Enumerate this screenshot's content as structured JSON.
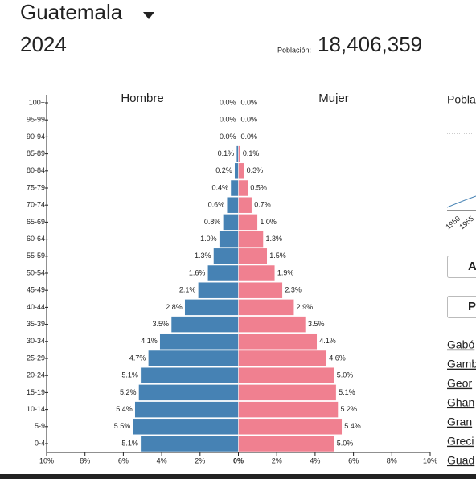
{
  "header": {
    "country": "Guatemala",
    "year": "2024",
    "population_label": "Población:",
    "population": "18,406,359"
  },
  "sidebar": {
    "heading": "Pobla",
    "axis_labels": [
      "1950",
      "1955"
    ],
    "buttons": [
      "A",
      "P"
    ],
    "links": [
      "Gabó",
      "Gamb",
      "Geor",
      "Ghan",
      "Gran",
      "Greci",
      "Guad"
    ]
  },
  "chart_data": {
    "type": "pyramid",
    "categories": [
      "0-4",
      "5-9",
      "10-14",
      "15-19",
      "20-24",
      "25-29",
      "30-34",
      "35-39",
      "40-44",
      "45-49",
      "50-54",
      "55-59",
      "60-64",
      "65-69",
      "70-74",
      "75-79",
      "80-84",
      "85-89",
      "90-94",
      "95-99",
      "100+"
    ],
    "series": [
      {
        "name": "Hombre",
        "color": "#4682b4",
        "side": "left",
        "values": [
          5.1,
          5.5,
          5.4,
          5.2,
          5.1,
          4.7,
          4.1,
          3.5,
          2.8,
          2.1,
          1.6,
          1.3,
          1.0,
          0.8,
          0.6,
          0.4,
          0.2,
          0.1,
          0.0,
          0.0,
          0.0
        ],
        "value_labels": [
          "5.1%",
          "5.5%",
          "5.4%",
          "5.2%",
          "5.1%",
          "4.7%",
          "4.1%",
          "3.5%",
          "2.8%",
          "2.1%",
          "1.6%",
          "1.3%",
          "1.0%",
          "0.8%",
          "0.6%",
          "0.4%",
          "0.2%",
          "0.1%",
          "0.0%",
          "0.0%",
          "0.0%"
        ]
      },
      {
        "name": "Mujer",
        "color": "#f08090",
        "side": "right",
        "values": [
          5.0,
          5.4,
          5.2,
          5.1,
          5.0,
          4.6,
          4.1,
          3.5,
          2.9,
          2.3,
          1.9,
          1.5,
          1.3,
          1.0,
          0.7,
          0.5,
          0.3,
          0.1,
          0.0,
          0.0,
          0.0
        ],
        "value_labels": [
          "5.0%",
          "5.4%",
          "5.2%",
          "5.1%",
          "5.0%",
          "4.6%",
          "4.1%",
          "3.5%",
          "2.9%",
          "2.3%",
          "1.9%",
          "1.5%",
          "1.3%",
          "1.0%",
          "0.7%",
          "0.5%",
          "0.3%",
          "0.1%",
          "0.0%",
          "0.0%",
          "0.0%"
        ]
      }
    ],
    "xlim": [
      -10,
      10
    ],
    "xticks": [
      {
        "value": -10,
        "label": "10%"
      },
      {
        "value": -8,
        "label": "8%"
      },
      {
        "value": -6,
        "label": "6%"
      },
      {
        "value": -4,
        "label": "4%"
      },
      {
        "value": -2,
        "label": "2%"
      },
      {
        "value": 0,
        "label": "0%"
      },
      {
        "value": 2,
        "label": "2%"
      },
      {
        "value": 4,
        "label": "4%"
      },
      {
        "value": 6,
        "label": "6%"
      },
      {
        "value": 8,
        "label": "8%"
      },
      {
        "value": 10,
        "label": "10%"
      }
    ]
  }
}
